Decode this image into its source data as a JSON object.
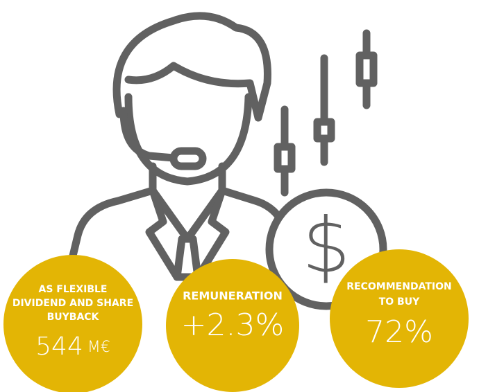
{
  "items": [
    {
      "label_lines": [
        "AS FLEXIBLE",
        "DIVIDEND AND SHARE",
        "BUYBACK"
      ],
      "value": "544",
      "unit": "M€"
    },
    {
      "label_lines": [
        "REMUNERATION"
      ],
      "value": "+2.3%"
    },
    {
      "label_lines": [
        "RECOMMENDATION",
        "TO BUY"
      ],
      "value": "72%"
    }
  ]
}
